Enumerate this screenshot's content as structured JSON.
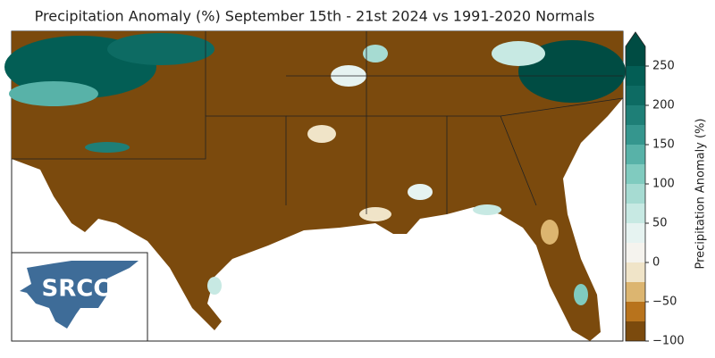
{
  "title": "Precipitation Anomaly (%) September 15th - 21st 2024 vs 1991-2020 Normals",
  "logo": {
    "text": "SRCC"
  },
  "colorbar": {
    "label": "Precipitation Anomaly (%)",
    "lim": [
      -100,
      275
    ],
    "ticks": [
      {
        "value": -100,
        "label": "−100"
      },
      {
        "value": -50,
        "label": "−50"
      },
      0,
      50,
      100,
      150,
      200,
      250
    ],
    "bins": [
      -100,
      -75,
      -50,
      -25,
      0,
      25,
      50,
      75,
      100,
      125,
      150,
      175,
      200,
      225,
      250,
      275
    ],
    "colors": [
      "#7b4a0d",
      "#b8731c",
      "#dcb570",
      "#f0e4c8",
      "#f5f3ee",
      "#e6f3f1",
      "#c7e9e3",
      "#a6dbd2",
      "#80cbbf",
      "#58b2a8",
      "#35968e",
      "#1e7f77",
      "#0d6b63",
      "#035e55",
      "#004c43"
    ]
  }
}
